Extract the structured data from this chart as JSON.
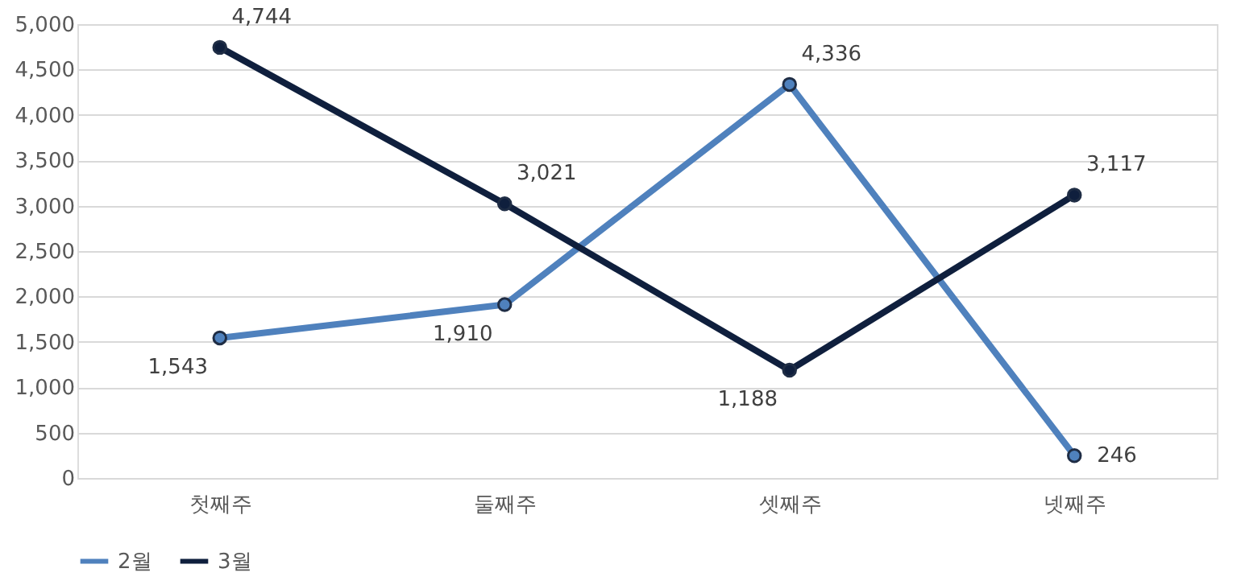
{
  "chart_data": {
    "type": "line",
    "categories": [
      "첫째주",
      "둘째주",
      "셋째주",
      "넷째주"
    ],
    "series": [
      {
        "name": "2월",
        "color": "#4f81bd",
        "values": [
          1543,
          1910,
          4336,
          246
        ],
        "value_labels": [
          "1,543",
          "1,910",
          "4,336",
          "246"
        ]
      },
      {
        "name": "3월",
        "color": "#0f1f3d",
        "values": [
          4744,
          3021,
          1188,
          3117
        ],
        "value_labels": [
          "4,744",
          "3,021",
          "1,188",
          "3,117"
        ]
      }
    ],
    "ylim": [
      0,
      5000
    ],
    "yticks": [
      {
        "value": 0,
        "label": "0"
      },
      {
        "value": 500,
        "label": "500"
      },
      {
        "value": 1000,
        "label": "1,000"
      },
      {
        "value": 1500,
        "label": "1,500"
      },
      {
        "value": 2000,
        "label": "2,000"
      },
      {
        "value": 2500,
        "label": "2,500"
      },
      {
        "value": 3000,
        "label": "3,000"
      },
      {
        "value": 3500,
        "label": "3,500"
      },
      {
        "value": 4000,
        "label": "4,000"
      },
      {
        "value": 4500,
        "label": "4,500"
      },
      {
        "value": 5000,
        "label": "5,000"
      }
    ],
    "grid": "y",
    "legend": "bottom",
    "marker": "circle",
    "line_style": "solid"
  }
}
